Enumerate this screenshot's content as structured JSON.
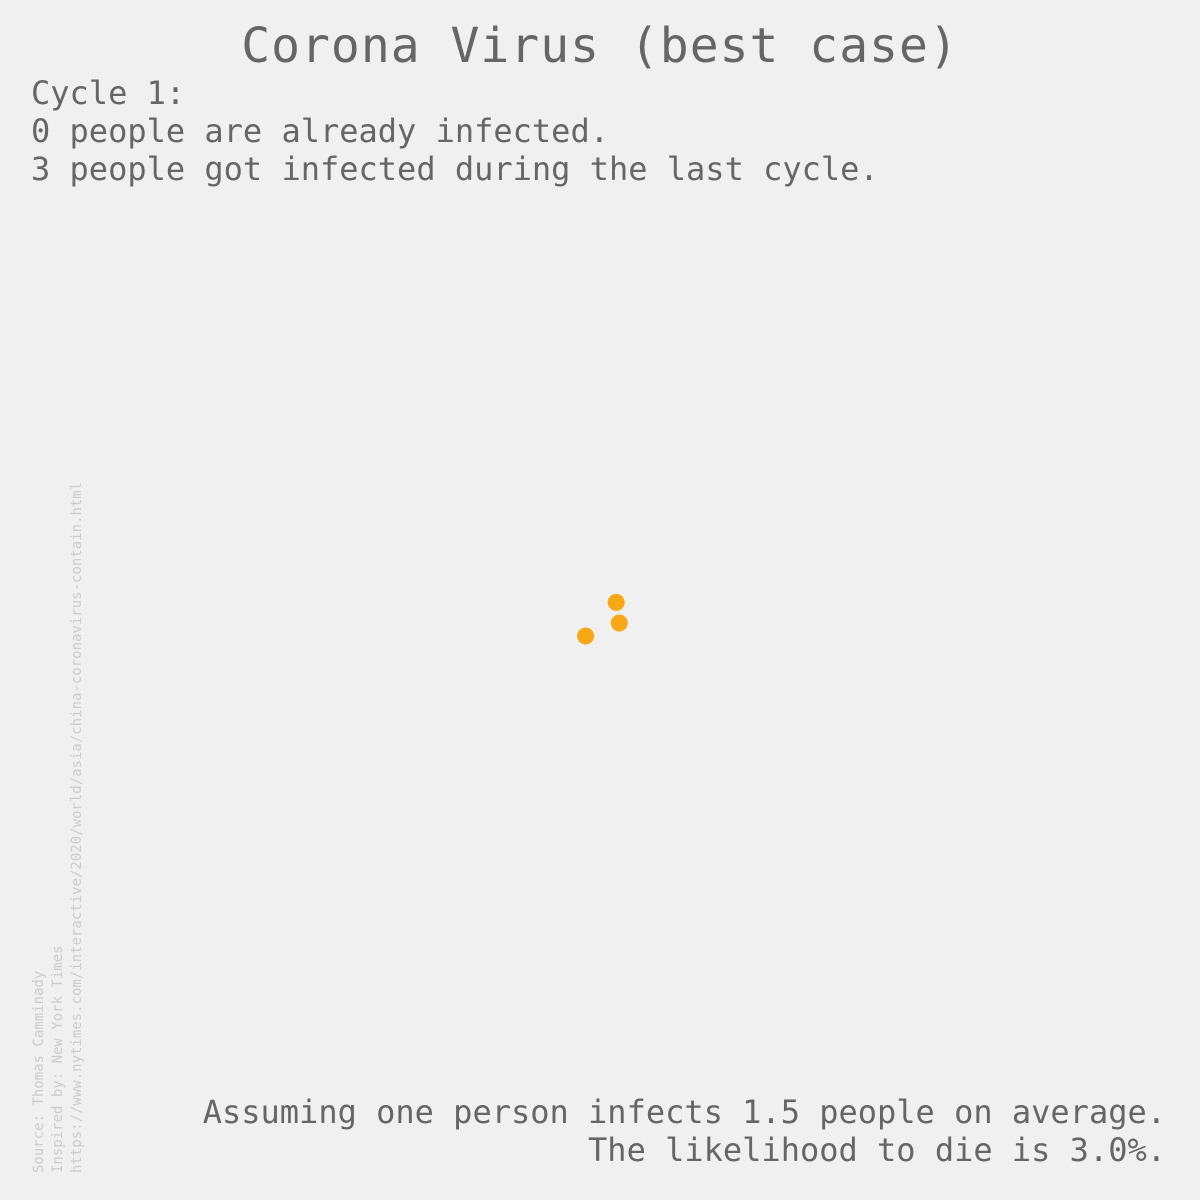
{
  "title": "Corona Virus (best case)",
  "status": {
    "cycle_line": "Cycle 1:",
    "already_line": "0 people are already infected.",
    "new_line": "3 people got infected during the last cycle."
  },
  "assumptions": {
    "rate_line": "Assuming one person infects 1.5 people on average.",
    "death_line": "The likelihood to die is 3.0%."
  },
  "source": {
    "line1": "Source: Thomas Camminady",
    "line2": "Inspired by: New York Times",
    "line3": "https://www.nytimes.com/interactive/2020/world/asia/china-coronavirus-contain.html"
  },
  "colors": {
    "background": "#f0f0f0",
    "text": "#666666",
    "source_text": "#cccccc",
    "infected": "#f7a814"
  },
  "chart_data": {
    "type": "scatter",
    "title": "Corona Virus (best case)",
    "xlabel": "",
    "ylabel": "",
    "xlim": [
      -1,
      1
    ],
    "ylim": [
      -1,
      1
    ],
    "grid": false,
    "axes_visible": false,
    "series": [
      {
        "color": "#f7a814",
        "points": [
          {
            "x": 0.036,
            "y": -0.005
          },
          {
            "x": 0.043,
            "y": -0.048
          },
          {
            "x": -0.032,
            "y": -0.075
          }
        ]
      }
    ]
  }
}
